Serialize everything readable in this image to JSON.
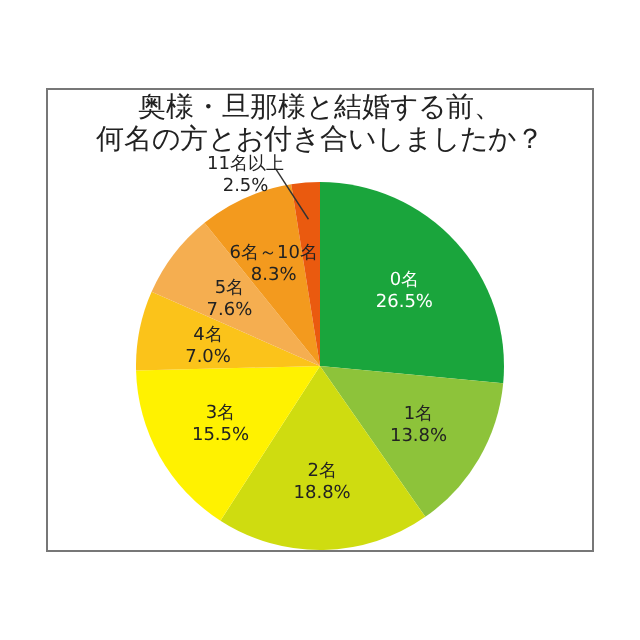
{
  "chart_data": {
    "type": "pie",
    "title": "奥様・旦那様と結婚する前、何名の方とお付き合いしましたか？",
    "categories": [
      "0名",
      "1名",
      "2名",
      "3名",
      "4名",
      "5名",
      "6名～10名",
      "11名以上"
    ],
    "values": [
      26.5,
      13.8,
      18.8,
      15.5,
      7.0,
      7.6,
      8.3,
      2.5
    ],
    "colors": [
      "#1aa53c",
      "#8dc33a",
      "#cfdc10",
      "#fff200",
      "#fbc31a",
      "#f5ae50",
      "#f39a1e",
      "#ea5a0f"
    ],
    "value_labels": [
      "26.5%",
      "13.8%",
      "18.8%",
      "15.5%",
      "7.0%",
      "7.6%",
      "8.3%",
      "2.5%"
    ]
  }
}
